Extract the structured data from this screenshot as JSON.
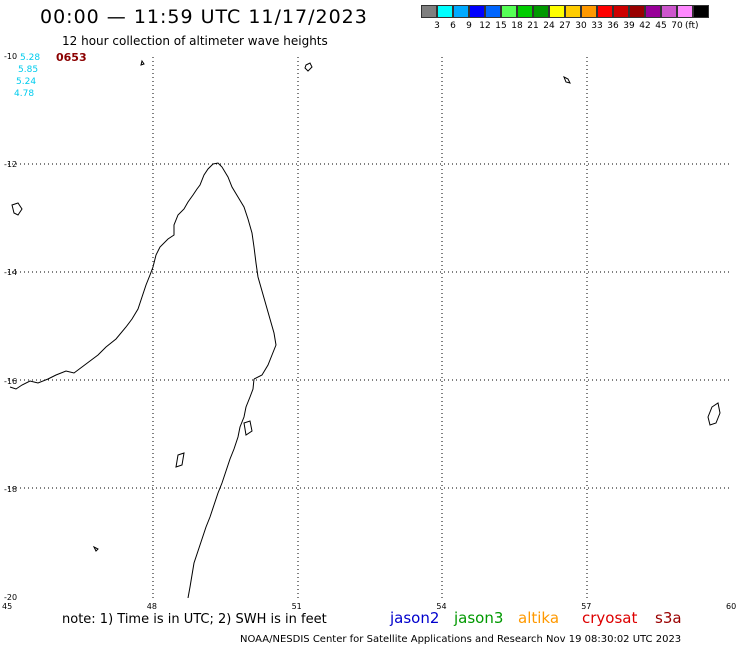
{
  "header": {
    "title": "00:00 — 11:59 UTC 11/17/2023",
    "subtitle": "12 hour collection of altimeter wave heights"
  },
  "legend": {
    "colors": [
      "#7f7f7f",
      "#00ffff",
      "#00aaff",
      "#0000ff",
      "#0066ff",
      "#55ff55",
      "#00cc00",
      "#009900",
      "#ffff00",
      "#ffcc00",
      "#ff9900",
      "#ff0000",
      "#cc0000",
      "#990000",
      "#990099",
      "#cc55cc",
      "#ff88ff",
      "#000000"
    ],
    "ticks": [
      "3",
      "6",
      "9",
      "12",
      "15",
      "18",
      "21",
      "24",
      "27",
      "30",
      "33",
      "36",
      "39",
      "42",
      "45",
      "70"
    ],
    "unit": "(ft)"
  },
  "map": {
    "lat_labels": [
      "-10",
      "-12",
      "-14",
      "-16",
      "-18",
      "-20"
    ],
    "lon_labels": [
      "45",
      "48",
      "51",
      "54",
      "57",
      "60"
    ],
    "lon_range": [
      45,
      60
    ],
    "lat_range": [
      -20,
      -10
    ]
  },
  "observations": {
    "values": [
      "5.28",
      "5.85",
      "5.24",
      "4.78"
    ],
    "pass_time": "0653"
  },
  "footer": {
    "note": "note: 1) Time is in UTC; 2) SWH is in feet",
    "satellites": [
      {
        "label": "jason2",
        "color": "#0000cc"
      },
      {
        "label": "jason3",
        "color": "#009900"
      },
      {
        "label": "altika",
        "color": "#ff9900"
      },
      {
        "label": "cryosat",
        "color": "#dd0000"
      },
      {
        "label": "s3a",
        "color": "#990000"
      }
    ],
    "credit": "NOAA/NESDIS Center for Satellite Applications and Research   Nov 19 08:30:02 UTC 2023"
  }
}
